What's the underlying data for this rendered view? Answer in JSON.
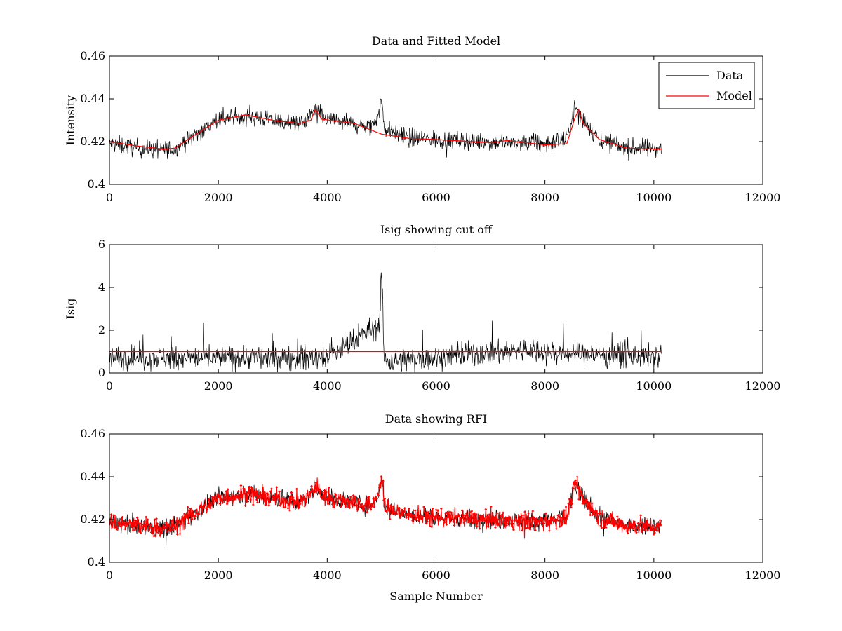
{
  "chart_data": [
    {
      "type": "line",
      "title": "Data and Fitted Model",
      "xlabel": "",
      "ylabel": "Intensity",
      "xlim": [
        0,
        12000
      ],
      "ylim": [
        0.4,
        0.46
      ],
      "xticks": [
        0,
        2000,
        4000,
        6000,
        8000,
        10000,
        12000
      ],
      "xtick_labels": [
        "0",
        "2000",
        "4000",
        "6000",
        "8000",
        "10000",
        "12000"
      ],
      "yticks": [
        0.4,
        0.42,
        0.44,
        0.46
      ],
      "ytick_labels": [
        "0.4",
        "0.42",
        "0.44",
        "0.46"
      ],
      "legend": {
        "placement": "top-right",
        "entries": [
          "Data",
          "Model"
        ]
      },
      "series": [
        {
          "name": "Data",
          "color": "#000000",
          "style": "noisy line, amplitude about ±0.008 around the model",
          "x": [
            0,
            500,
            1000,
            1200,
            1500,
            2000,
            2500,
            3000,
            3500,
            3700,
            3800,
            3900,
            4500,
            4800,
            4950,
            5000,
            5050,
            5500,
            6000,
            7000,
            8000,
            8400,
            8550,
            8700,
            9000,
            9500,
            10140
          ],
          "y": [
            0.419,
            0.417,
            0.416,
            0.417,
            0.422,
            0.43,
            0.432,
            0.43,
            0.428,
            0.432,
            0.436,
            0.431,
            0.428,
            0.426,
            0.433,
            0.44,
            0.426,
            0.422,
            0.421,
            0.42,
            0.419,
            0.421,
            0.436,
            0.43,
            0.421,
            0.417,
            0.417
          ]
        },
        {
          "name": "Model",
          "color": "#ff0000",
          "x": [
            0,
            500,
            1000,
            1200,
            1500,
            2000,
            2500,
            3000,
            3500,
            3700,
            3780,
            3900,
            4500,
            5000,
            5500,
            6000,
            7000,
            7300,
            8000,
            8400,
            8550,
            8620,
            8700,
            9000,
            9500,
            10140
          ],
          "y": [
            0.42,
            0.418,
            0.4165,
            0.417,
            0.422,
            0.43,
            0.4325,
            0.43,
            0.4285,
            0.43,
            0.435,
            0.4305,
            0.4285,
            0.4235,
            0.4215,
            0.421,
            0.4195,
            0.4205,
            0.4185,
            0.419,
            0.431,
            0.435,
            0.4285,
            0.421,
            0.417,
            0.4165
          ]
        }
      ]
    },
    {
      "type": "line",
      "title": "Isig showing cut off",
      "xlabel": "",
      "ylabel": "Isig",
      "xlim": [
        0,
        12000
      ],
      "ylim": [
        0,
        6
      ],
      "xticks": [
        0,
        2000,
        4000,
        6000,
        8000,
        10000,
        12000
      ],
      "xtick_labels": [
        "0",
        "2000",
        "4000",
        "6000",
        "8000",
        "10000",
        "12000"
      ],
      "yticks": [
        0,
        2,
        4,
        6
      ],
      "ytick_labels": [
        "0",
        "2",
        "4",
        "6"
      ],
      "series": [
        {
          "name": "",
          "color": "#000000",
          "style": "noisy non-negative line, mostly 0 to 2.5, peaks up to about 3.5",
          "x": [
            0,
            2000,
            4000,
            4950,
            5000,
            5050,
            6000,
            7600,
            8000,
            10140
          ],
          "y": [
            0.8,
            0.8,
            0.8,
            2.5,
            5.3,
            0.6,
            0.8,
            1.2,
            1.1,
            0.8
          ]
        },
        {
          "name": "",
          "color": "#ff0000",
          "x": [
            0,
            10140
          ],
          "y": [
            1,
            1
          ]
        }
      ]
    },
    {
      "type": "line",
      "title": "Data showing RFI",
      "xlabel": "Sample Number",
      "ylabel": "",
      "xlim": [
        0,
        12000
      ],
      "ylim": [
        0.4,
        0.46
      ],
      "xticks": [
        0,
        2000,
        4000,
        6000,
        8000,
        10000,
        12000
      ],
      "xtick_labels": [
        "0",
        "2000",
        "4000",
        "6000",
        "8000",
        "10000",
        "12000"
      ],
      "yticks": [
        0.4,
        0.42,
        0.44,
        0.46
      ],
      "ytick_labels": [
        "0.4",
        "0.42",
        "0.44",
        "0.46"
      ],
      "series": [
        {
          "name": "",
          "color": "#000000",
          "style": "noisy line, same data as top panel",
          "x": [
            0,
            500,
            1000,
            1200,
            1500,
            2000,
            2500,
            3000,
            3500,
            3700,
            3800,
            3900,
            4500,
            4800,
            4950,
            5000,
            5050,
            5500,
            6000,
            7000,
            8000,
            8400,
            8550,
            8700,
            9000,
            9500,
            10140
          ],
          "y": [
            0.419,
            0.417,
            0.416,
            0.417,
            0.422,
            0.43,
            0.432,
            0.43,
            0.428,
            0.432,
            0.436,
            0.431,
            0.428,
            0.426,
            0.433,
            0.44,
            0.426,
            0.422,
            0.421,
            0.42,
            0.419,
            0.421,
            0.436,
            0.43,
            0.421,
            0.417,
            0.417
          ]
        },
        {
          "name": "",
          "color": "#ff0000",
          "style": "red dot markers flagged as RFI overlaid on the data",
          "x": [
            0,
            500,
            1000,
            1200,
            1500,
            2000,
            2500,
            3000,
            3500,
            3700,
            3800,
            3900,
            4500,
            4800,
            4950,
            5000,
            5050,
            5500,
            6000,
            7000,
            8000,
            8400,
            8550,
            8700,
            9000,
            9500,
            10140
          ],
          "y": [
            0.419,
            0.417,
            0.416,
            0.417,
            0.422,
            0.43,
            0.432,
            0.43,
            0.428,
            0.432,
            0.436,
            0.431,
            0.428,
            0.426,
            0.433,
            0.44,
            0.426,
            0.422,
            0.421,
            0.42,
            0.419,
            0.421,
            0.436,
            0.43,
            0.421,
            0.417,
            0.417
          ]
        }
      ]
    }
  ]
}
